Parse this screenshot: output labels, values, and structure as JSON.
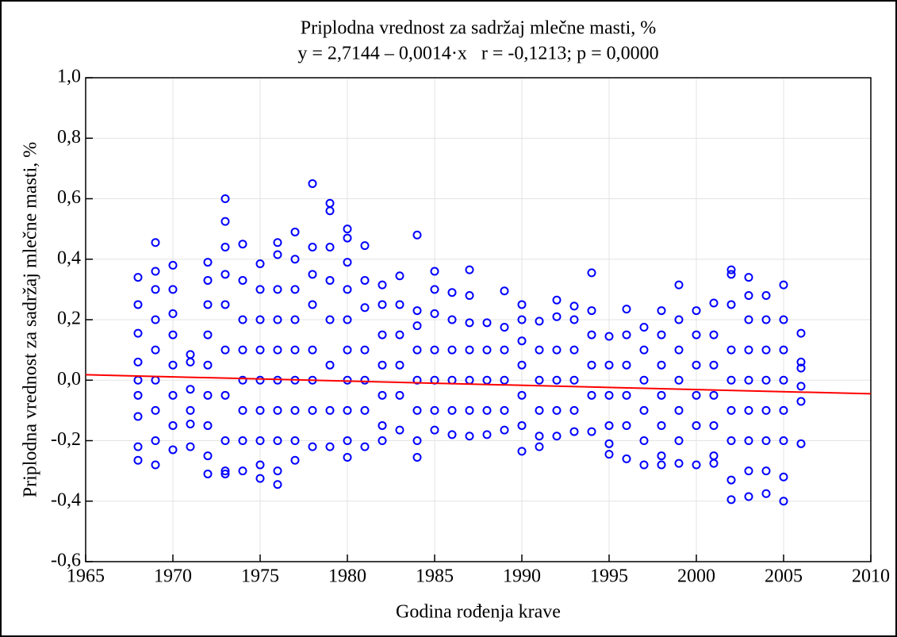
{
  "chart_data": {
    "type": "scatter",
    "title": "Priplodna vrednost za sadržaj mlečne masti, %",
    "subtitle": "y = 2,7144 – 0,0014·x   r = -0,1213; p = 0,0000",
    "x_label": "Godina rođenja krave",
    "y_label": "Priplodna vrednost za sadržaj mlečne masti, %",
    "color": "#0000ff",
    "grid": true,
    "xlim": [
      1965,
      2010
    ],
    "ylim": [
      -0.6,
      1.0
    ],
    "xticks": [
      1965,
      1970,
      1975,
      1980,
      1985,
      1990,
      1995,
      2000,
      2005,
      2010
    ],
    "yticks": [
      {
        "value": -0.6,
        "label": "-0,6"
      },
      {
        "value": -0.4,
        "label": "-0,4"
      },
      {
        "value": -0.2,
        "label": "-0,2"
      },
      {
        "value": 0,
        "label": "0,0"
      },
      {
        "value": 0.2,
        "label": "0,2"
      },
      {
        "value": 0.4,
        "label": "0,4"
      },
      {
        "value": 0.6,
        "label": "0,6"
      },
      {
        "value": 0.8,
        "label": "0,8"
      },
      {
        "value": 1.0,
        "label": "1,0"
      }
    ],
    "trend_line": {
      "color": "#ff0000",
      "x": [
        1965,
        2010
      ],
      "y": [
        0.018,
        -0.045
      ]
    },
    "x": [
      1968,
      1968,
      1968,
      1968,
      1968,
      1968,
      1968,
      1968,
      1968,
      1969,
      1969,
      1969,
      1969,
      1969,
      1969,
      1969,
      1969,
      1969,
      1970,
      1970,
      1970,
      1970,
      1970,
      1970,
      1970,
      1970,
      1971,
      1971,
      1971,
      1971,
      1971,
      1971,
      1972,
      1972,
      1972,
      1972,
      1972,
      1972,
      1972,
      1972,
      1972,
      1973,
      1973,
      1973,
      1973,
      1973,
      1973,
      1973,
      1973,
      1973,
      1973,
      1974,
      1974,
      1974,
      1974,
      1974,
      1974,
      1974,
      1974,
      1975,
      1975,
      1975,
      1975,
      1975,
      1975,
      1975,
      1975,
      1975,
      1976,
      1976,
      1976,
      1976,
      1976,
      1976,
      1976,
      1976,
      1976,
      1976,
      1977,
      1977,
      1977,
      1977,
      1977,
      1977,
      1977,
      1977,
      1977,
      1978,
      1978,
      1978,
      1978,
      1978,
      1978,
      1978,
      1978,
      1979,
      1979,
      1979,
      1979,
      1979,
      1979,
      1979,
      1979,
      1980,
      1980,
      1980,
      1980,
      1980,
      1980,
      1980,
      1980,
      1980,
      1980,
      1981,
      1981,
      1981,
      1981,
      1981,
      1981,
      1981,
      1982,
      1982,
      1982,
      1982,
      1982,
      1982,
      1982,
      1983,
      1983,
      1983,
      1983,
      1983,
      1983,
      1984,
      1984,
      1984,
      1984,
      1984,
      1984,
      1984,
      1984,
      1985,
      1985,
      1985,
      1985,
      1985,
      1985,
      1985,
      1986,
      1986,
      1986,
      1986,
      1986,
      1986,
      1987,
      1987,
      1987,
      1987,
      1987,
      1987,
      1987,
      1988,
      1988,
      1988,
      1988,
      1988,
      1989,
      1989,
      1989,
      1989,
      1989,
      1989,
      1990,
      1990,
      1990,
      1990,
      1990,
      1990,
      1990,
      1991,
      1991,
      1991,
      1991,
      1991,
      1991,
      1992,
      1992,
      1992,
      1992,
      1992,
      1992,
      1993,
      1993,
      1993,
      1993,
      1993,
      1993,
      1994,
      1994,
      1994,
      1994,
      1994,
      1994,
      1995,
      1995,
      1995,
      1995,
      1995,
      1995,
      1996,
      1996,
      1996,
      1996,
      1996,
      1996,
      1997,
      1997,
      1997,
      1997,
      1997,
      1997,
      1998,
      1998,
      1998,
      1998,
      1998,
      1998,
      1998,
      1999,
      1999,
      1999,
      1999,
      1999,
      1999,
      1999,
      2000,
      2000,
      2000,
      2000,
      2000,
      2000,
      2001,
      2001,
      2001,
      2001,
      2001,
      2001,
      2001,
      2002,
      2002,
      2002,
      2002,
      2002,
      2002,
      2002,
      2002,
      2002,
      2003,
      2003,
      2003,
      2003,
      2003,
      2003,
      2003,
      2003,
      2003,
      2004,
      2004,
      2004,
      2004,
      2004,
      2004,
      2004,
      2004,
      2005,
      2005,
      2005,
      2005,
      2005,
      2005,
      2005,
      2005,
      2006,
      2006,
      2006,
      2006,
      2006,
      2006
    ],
    "y": [
      0.34,
      0.25,
      0.155,
      0.06,
      0.0,
      -0.05,
      -0.12,
      -0.22,
      -0.265,
      0.455,
      0.36,
      0.3,
      0.2,
      0.1,
      0.0,
      -0.1,
      -0.2,
      -0.28,
      0.38,
      0.3,
      0.22,
      0.15,
      0.05,
      -0.05,
      -0.15,
      -0.23,
      0.085,
      0.06,
      -0.03,
      -0.1,
      -0.145,
      -0.22,
      0.39,
      0.33,
      0.25,
      0.15,
      0.05,
      -0.05,
      -0.15,
      -0.25,
      -0.31,
      0.6,
      0.525,
      0.44,
      0.35,
      0.25,
      0.1,
      -0.05,
      -0.2,
      -0.3,
      -0.31,
      0.45,
      0.33,
      0.2,
      0.1,
      0.0,
      -0.1,
      -0.2,
      -0.3,
      0.385,
      0.3,
      0.2,
      0.1,
      0.0,
      -0.1,
      -0.2,
      -0.28,
      -0.325,
      0.455,
      0.415,
      0.3,
      0.2,
      0.1,
      0.0,
      -0.1,
      -0.2,
      -0.3,
      -0.345,
      0.49,
      0.4,
      0.3,
      0.2,
      0.1,
      0.0,
      -0.1,
      -0.2,
      -0.265,
      0.65,
      0.44,
      0.35,
      0.25,
      0.1,
      0.0,
      -0.1,
      -0.22,
      0.585,
      0.56,
      0.44,
      0.33,
      0.2,
      0.05,
      -0.1,
      -0.22,
      0.5,
      0.47,
      0.39,
      0.3,
      0.2,
      0.1,
      0.0,
      -0.1,
      -0.2,
      -0.255,
      0.445,
      0.33,
      0.24,
      0.1,
      0.0,
      -0.1,
      -0.22,
      0.315,
      0.25,
      0.15,
      0.05,
      -0.05,
      -0.15,
      -0.2,
      0.345,
      0.25,
      0.15,
      0.05,
      -0.05,
      -0.165,
      0.48,
      0.23,
      0.18,
      0.1,
      0.0,
      -0.1,
      -0.2,
      -0.255,
      0.36,
      0.3,
      0.22,
      0.1,
      0.0,
      -0.1,
      -0.165,
      0.29,
      0.2,
      0.1,
      0.0,
      -0.1,
      -0.18,
      0.365,
      0.28,
      0.19,
      0.1,
      0.0,
      -0.1,
      -0.185,
      0.19,
      0.1,
      0.0,
      -0.1,
      -0.18,
      0.295,
      0.175,
      0.1,
      0.0,
      -0.1,
      -0.165,
      0.25,
      0.2,
      0.13,
      0.05,
      -0.05,
      -0.15,
      -0.235,
      0.195,
      0.1,
      0.0,
      -0.1,
      -0.185,
      -0.22,
      0.265,
      0.21,
      0.1,
      0.0,
      -0.1,
      -0.185,
      0.245,
      0.2,
      0.1,
      0.0,
      -0.1,
      -0.17,
      0.355,
      0.23,
      0.15,
      0.05,
      -0.05,
      -0.17,
      0.145,
      0.05,
      -0.05,
      -0.15,
      -0.21,
      -0.245,
      0.235,
      0.15,
      0.05,
      -0.05,
      -0.15,
      -0.26,
      0.175,
      0.1,
      0.0,
      -0.1,
      -0.2,
      -0.28,
      0.23,
      0.15,
      0.05,
      -0.05,
      -0.15,
      -0.25,
      -0.28,
      0.315,
      0.2,
      0.1,
      0.0,
      -0.1,
      -0.2,
      -0.275,
      0.23,
      0.15,
      0.05,
      -0.05,
      -0.15,
      -0.28,
      0.255,
      0.15,
      0.05,
      -0.05,
      -0.15,
      -0.25,
      -0.275,
      0.365,
      0.35,
      0.25,
      0.1,
      0.0,
      -0.1,
      -0.2,
      -0.33,
      -0.395,
      0.34,
      0.28,
      0.2,
      0.1,
      0.0,
      -0.1,
      -0.2,
      -0.3,
      -0.385,
      0.28,
      0.2,
      0.1,
      0.0,
      -0.1,
      -0.2,
      -0.3,
      -0.375,
      0.315,
      0.2,
      0.1,
      0.0,
      -0.1,
      -0.2,
      -0.32,
      -0.4,
      0.155,
      0.06,
      0.04,
      -0.02,
      -0.07,
      -0.21
    ]
  }
}
